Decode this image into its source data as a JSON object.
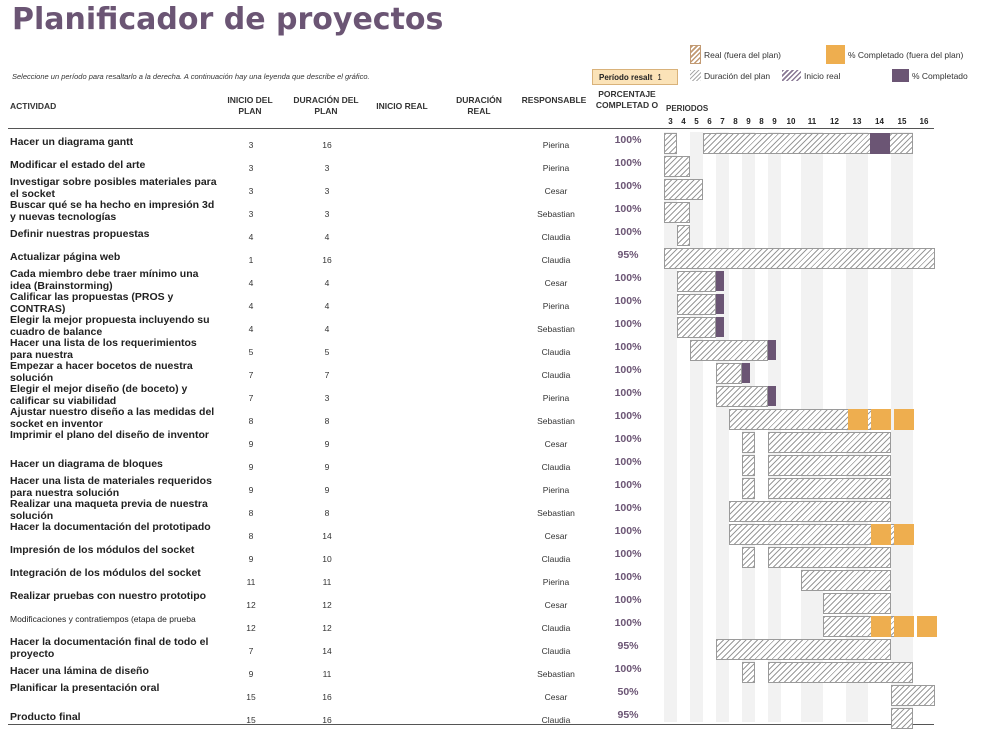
{
  "title": "Planificador de proyectos",
  "subtitle": "Seleccione un período para resaltarlo a la derecha.  A continuación hay una leyenda que describe el gráfico.",
  "period_selector": {
    "label": "Período resalt",
    "value": "1"
  },
  "legend": {
    "real": "Real (fuera del plan)",
    "completed_out": "% Completado (fuera del plan)",
    "plan": "Duración del plan",
    "inicio": "Inicio real",
    "completed": "% Completado"
  },
  "headers": {
    "actividad": "ACTIVIDAD",
    "inicio_plan": "INICIO DEL PLAN",
    "duracion_plan": "DURACIÓN DEL PLAN",
    "inicio_real": "INICIO REAL",
    "duracion_real": "DURACIÓN REAL",
    "responsable": "RESPONSABLE",
    "porcentaje": "PORCENTAJE COMPLETAD O",
    "periodos": "PERIODOS"
  },
  "period_numbers": [
    "3",
    "4",
    "5",
    "6",
    "7",
    "8",
    "9",
    "8",
    "9",
    "10",
    "11",
    "12",
    "13",
    "14",
    "15",
    "16"
  ],
  "colors": {
    "title": "#6b5574",
    "completed": "#6b5574",
    "out_of_plan": "#eeae4f",
    "plan_hatch": "#9a9a9a"
  },
  "rows": [
    {
      "activity": "Hacer un diagrama gantt",
      "inicio": "3",
      "duracion": "16",
      "responsable": "Pierina",
      "pct": "100%"
    },
    {
      "activity": "Modificar el estado del arte",
      "inicio": "3",
      "duracion": "3",
      "responsable": "Pierina",
      "pct": "100%"
    },
    {
      "activity": "Investigar sobre posibles materiales para el socket",
      "inicio": "3",
      "duracion": "3",
      "responsable": "Cesar",
      "pct": "100%"
    },
    {
      "activity": "Buscar qué se ha hecho en impresión 3d y nuevas tecnologías",
      "inicio": "3",
      "duracion": "3",
      "responsable": "Sebastian",
      "pct": "100%"
    },
    {
      "activity": "Definir nuestras propuestas",
      "inicio": "4",
      "duracion": "4",
      "responsable": "Claudia",
      "pct": "100%"
    },
    {
      "activity": "Actualizar página web",
      "inicio": "1",
      "duracion": "16",
      "responsable": "Claudia",
      "pct": "95%"
    },
    {
      "activity": "Cada miembro debe traer mínimo una idea (Brainstorming)",
      "inicio": "4",
      "duracion": "4",
      "responsable": "Cesar",
      "pct": "100%"
    },
    {
      "activity": "Calificar las propuestas (PROS y CONTRAS)",
      "inicio": "4",
      "duracion": "4",
      "responsable": "Pierina",
      "pct": "100%"
    },
    {
      "activity": "Elegir la mejor propuesta incluyendo su cuadro de balance",
      "inicio": "4",
      "duracion": "4",
      "responsable": "Sebastian",
      "pct": "100%"
    },
    {
      "activity": "Hacer una lista de los requerimientos para nuestra",
      "inicio": "5",
      "duracion": "5",
      "responsable": "Claudia",
      "pct": "100%"
    },
    {
      "activity": "Empezar a hacer bocetos de nuestra solución",
      "inicio": "7",
      "duracion": "7",
      "responsable": "Claudia",
      "pct": "100%"
    },
    {
      "activity": "Elegir el mejor diseño (de boceto) y calificar su viabilidad",
      "inicio": "7",
      "duracion": "3",
      "responsable": "Pierina",
      "pct": "100%"
    },
    {
      "activity": "Ajustar nuestro diseño a las medidas del socket en inventor",
      "inicio": "8",
      "duracion": "8",
      "responsable": "Sebastian",
      "pct": "100%"
    },
    {
      "activity": "Imprimir el plano del diseño de inventor",
      "inicio": "9",
      "duracion": "9",
      "responsable": "Cesar",
      "pct": "100%"
    },
    {
      "activity": "Hacer un diagrama de bloques",
      "inicio": "9",
      "duracion": "9",
      "responsable": "Claudia",
      "pct": "100%"
    },
    {
      "activity": "Hacer una lista de materiales requeridos para nuestra solución",
      "inicio": "9",
      "duracion": "9",
      "responsable": "Pierina",
      "pct": "100%"
    },
    {
      "activity": "Realizar una maqueta previa de nuestra solución",
      "inicio": "8",
      "duracion": "8",
      "responsable": "Sebastian",
      "pct": "100%"
    },
    {
      "activity": "Hacer la documentación del prototipado",
      "inicio": "8",
      "duracion": "14",
      "responsable": "Cesar",
      "pct": "100%"
    },
    {
      "activity": "Impresión de los módulos del socket",
      "inicio": "9",
      "duracion": "10",
      "responsable": "Claudia",
      "pct": "100%"
    },
    {
      "activity": "Integración de los módulos del socket",
      "inicio": "11",
      "duracion": "11",
      "responsable": "Pierina",
      "pct": "100%"
    },
    {
      "activity": "Realizar pruebas con nuestro prototipo",
      "inicio": "12",
      "duracion": "12",
      "responsable": "Cesar",
      "pct": "100%"
    },
    {
      "activity": "Modificaciones y contratiempos (etapa de prueba",
      "inicio": "12",
      "duracion": "12",
      "responsable": "Claudia",
      "pct": "100%"
    },
    {
      "activity": "Hacer la documentación final de todo el proyecto",
      "inicio": "7",
      "duracion": "14",
      "responsable": "Claudia",
      "pct": "95%"
    },
    {
      "activity": "Hacer una lámina de diseño",
      "inicio": "9",
      "duracion": "11",
      "responsable": "Sebastian",
      "pct": "100%"
    },
    {
      "activity": "Planificar la presentación oral",
      "inicio": "15",
      "duracion": "16",
      "responsable": "Cesar",
      "pct": "50%"
    },
    {
      "activity": "Producto final",
      "inicio": "15",
      "duracion": "16",
      "responsable": "Claudia",
      "pct": "95%"
    }
  ]
}
